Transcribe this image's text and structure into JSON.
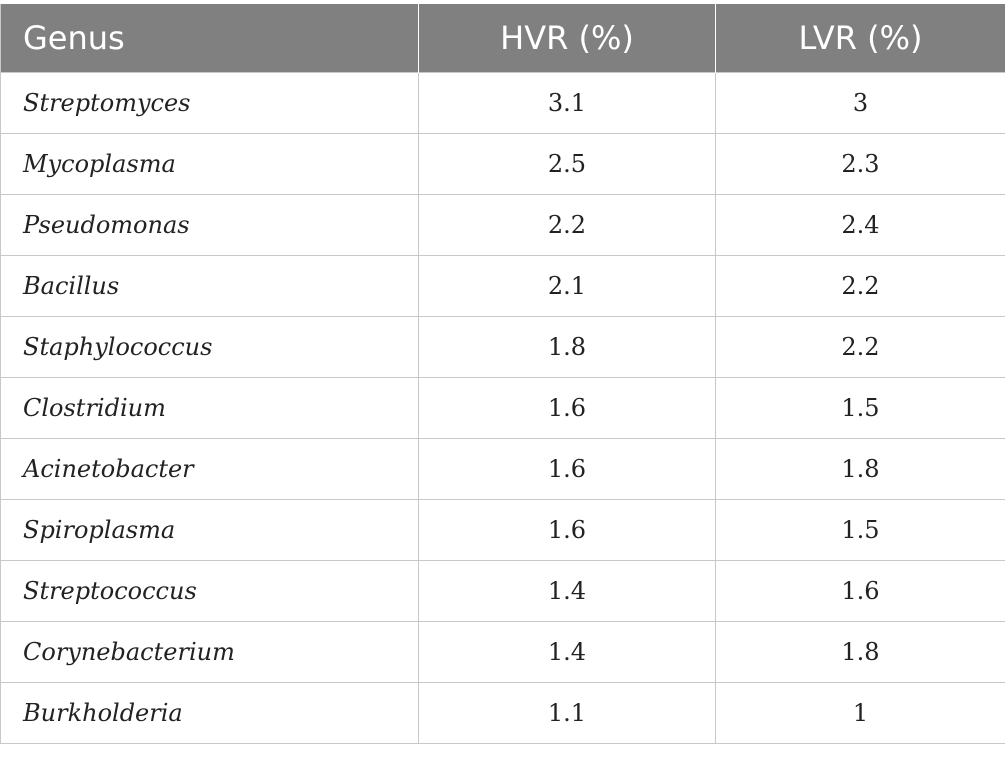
{
  "table": {
    "headers": [
      "Genus",
      "HVR (%)",
      "LVR (%)"
    ],
    "rows": [
      {
        "genus": "Streptomyces",
        "hvr": "3.1",
        "lvr": "3"
      },
      {
        "genus": "Mycoplasma",
        "hvr": "2.5",
        "lvr": "2.3"
      },
      {
        "genus": "Pseudomonas",
        "hvr": "2.2",
        "lvr": "2.4"
      },
      {
        "genus": "Bacillus",
        "hvr": "2.1",
        "lvr": "2.2"
      },
      {
        "genus": "Staphylococcus",
        "hvr": "1.8",
        "lvr": "2.2"
      },
      {
        "genus": "Clostridium",
        "hvr": "1.6",
        "lvr": "1.5"
      },
      {
        "genus": "Acinetobacter",
        "hvr": "1.6",
        "lvr": "1.8"
      },
      {
        "genus": "Spiroplasma",
        "hvr": "1.6",
        "lvr": "1.5"
      },
      {
        "genus": "Streptococcus",
        "hvr": "1.4",
        "lvr": "1.6"
      },
      {
        "genus": "Corynebacterium",
        "hvr": "1.4",
        "lvr": "1.8"
      },
      {
        "genus": "Burkholderia",
        "hvr": "1.1",
        "lvr": "1"
      }
    ]
  },
  "colors": {
    "header_bg": "#808080",
    "header_text": "#ffffff",
    "border": "#c8c8c8",
    "body_text": "#222222"
  }
}
